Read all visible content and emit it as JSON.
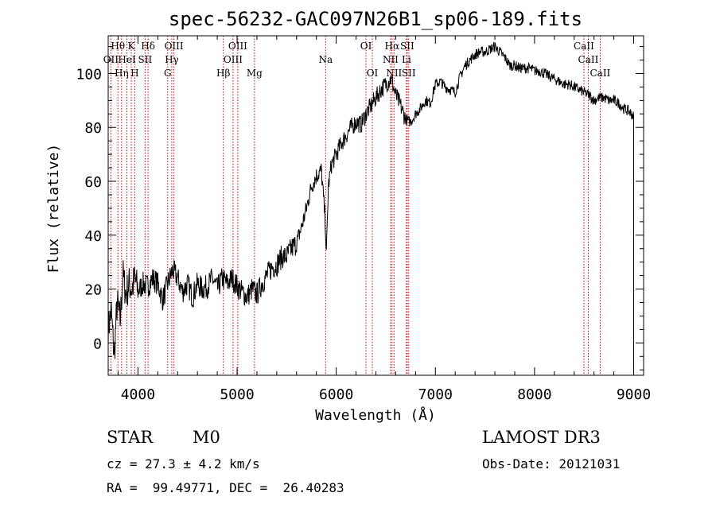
{
  "chart_data": {
    "type": "line",
    "title": "spec-56232-GAC097N26B1_sp06-189.fits",
    "xlabel": "Wavelength (Å)",
    "ylabel": "Flux (relative)",
    "xlim": [
      3700,
      9100
    ],
    "ylim": [
      -12,
      114
    ],
    "xticks": [
      4000,
      5000,
      6000,
      7000,
      8000,
      9000
    ],
    "yticks": [
      0,
      20,
      40,
      60,
      80,
      100
    ],
    "grid": false,
    "line_color": "#000000",
    "marker_color": "#cc0000",
    "series": [
      {
        "x": [
          3700,
          3730,
          3760,
          3790,
          3820,
          3850,
          3880,
          3910,
          3940,
          3970,
          4000,
          4050,
          4100,
          4150,
          4200,
          4250,
          4300,
          4350,
          4400,
          4450,
          4500,
          4550,
          4600,
          4650,
          4700,
          4750,
          4800,
          4850,
          4900,
          4950,
          5000,
          5050,
          5100,
          5150,
          5200,
          5250,
          5300,
          5350,
          5400,
          5450,
          5500,
          5550,
          5600,
          5650,
          5700,
          5750,
          5800,
          5850,
          5890,
          5900,
          5920,
          5950,
          6000,
          6050,
          6100,
          6150,
          6200,
          6250,
          6300,
          6350,
          6400,
          6450,
          6500,
          6550,
          6563,
          6600,
          6650,
          6700,
          6750,
          6800,
          6850,
          6900,
          6950,
          7000,
          7050,
          7100,
          7150,
          7200,
          7250,
          7300,
          7350,
          7400,
          7450,
          7500,
          7550,
          7600,
          7650,
          7700,
          7750,
          7800,
          7850,
          7900,
          7950,
          8000,
          8050,
          8100,
          8150,
          8200,
          8250,
          8300,
          8350,
          8400,
          8450,
          8500,
          8550,
          8600,
          8650,
          8700,
          8750,
          8800,
          8850,
          8900,
          8950,
          9000
        ],
        "y": [
          5,
          12,
          -5,
          15,
          8,
          25,
          18,
          22,
          20,
          24,
          19,
          22,
          21,
          24,
          22,
          16,
          22,
          27,
          24,
          19,
          22,
          17,
          22,
          20,
          21,
          24,
          20,
          24,
          22,
          24,
          21,
          19,
          17,
          20,
          18,
          22,
          25,
          28,
          29,
          32,
          32,
          35,
          37,
          43,
          50,
          58,
          62,
          64,
          45,
          32,
          58,
          66,
          70,
          74,
          77,
          80,
          82,
          81,
          85,
          88,
          91,
          94,
          96,
          98,
          97,
          92,
          88,
          83,
          82,
          85,
          87,
          90,
          89,
          96,
          97,
          95,
          94,
          93,
          99,
          103,
          105,
          107,
          108,
          108,
          109,
          110,
          108,
          106,
          103,
          103,
          102,
          102,
          102,
          101,
          101,
          100,
          99,
          98,
          97,
          96,
          96,
          95,
          94,
          93,
          92,
          90,
          91,
          91,
          90,
          90,
          89,
          87,
          86,
          84
        ]
      }
    ],
    "lines": [
      {
        "wl": 3727,
        "label": "OII",
        "row": 2
      },
      {
        "wl": 3798,
        "label": "Hθ",
        "row": 1
      },
      {
        "wl": 3835,
        "label": "Hη",
        "row": 3
      },
      {
        "wl": 3889,
        "label": "HeI",
        "row": 2
      },
      {
        "wl": 3933,
        "label": "K",
        "row": 1
      },
      {
        "wl": 3968,
        "label": "H",
        "row": 3
      },
      {
        "wl": 4072,
        "label": "SII",
        "row": 2
      },
      {
        "wl": 4102,
        "label": "Hδ",
        "row": 1
      },
      {
        "wl": 4300,
        "label": "G",
        "row": 3
      },
      {
        "wl": 4341,
        "label": "Hγ",
        "row": 2
      },
      {
        "wl": 4363,
        "label": "OIII",
        "row": 1
      },
      {
        "wl": 4861,
        "label": "Hβ",
        "row": 3
      },
      {
        "wl": 4959,
        "label": "OIII",
        "row": 2
      },
      {
        "wl": 5007,
        "label": "OIII",
        "row": 1
      },
      {
        "wl": 5175,
        "label": "Mg",
        "row": 3
      },
      {
        "wl": 5893,
        "label": "Na",
        "row": 2
      },
      {
        "wl": 6300,
        "label": "OI",
        "row": 1
      },
      {
        "wl": 6364,
        "label": "OI",
        "row": 3
      },
      {
        "wl": 6548,
        "label": "NII",
        "row": 2
      },
      {
        "wl": 6563,
        "label": "Hα",
        "row": 1
      },
      {
        "wl": 6583,
        "label": "NII",
        "row": 3
      },
      {
        "wl": 6708,
        "label": "Li",
        "row": 2
      },
      {
        "wl": 6716,
        "label": "SII",
        "row": 1
      },
      {
        "wl": 6731,
        "label": "SII",
        "row": 3
      },
      {
        "wl": 8498,
        "label": "CaII",
        "row": 1
      },
      {
        "wl": 8542,
        "label": "CaII",
        "row": 2
      },
      {
        "wl": 8662,
        "label": "CaII",
        "row": 3
      }
    ]
  },
  "info": {
    "object_class": "STAR",
    "subclass": "M0",
    "survey": "LAMOST DR3",
    "cz": "cz = 27.3 ± 4.2 km/s",
    "obs_date": "Obs-Date: 20121031",
    "coords": "RA =  99.49771, DEC =  26.40283"
  }
}
